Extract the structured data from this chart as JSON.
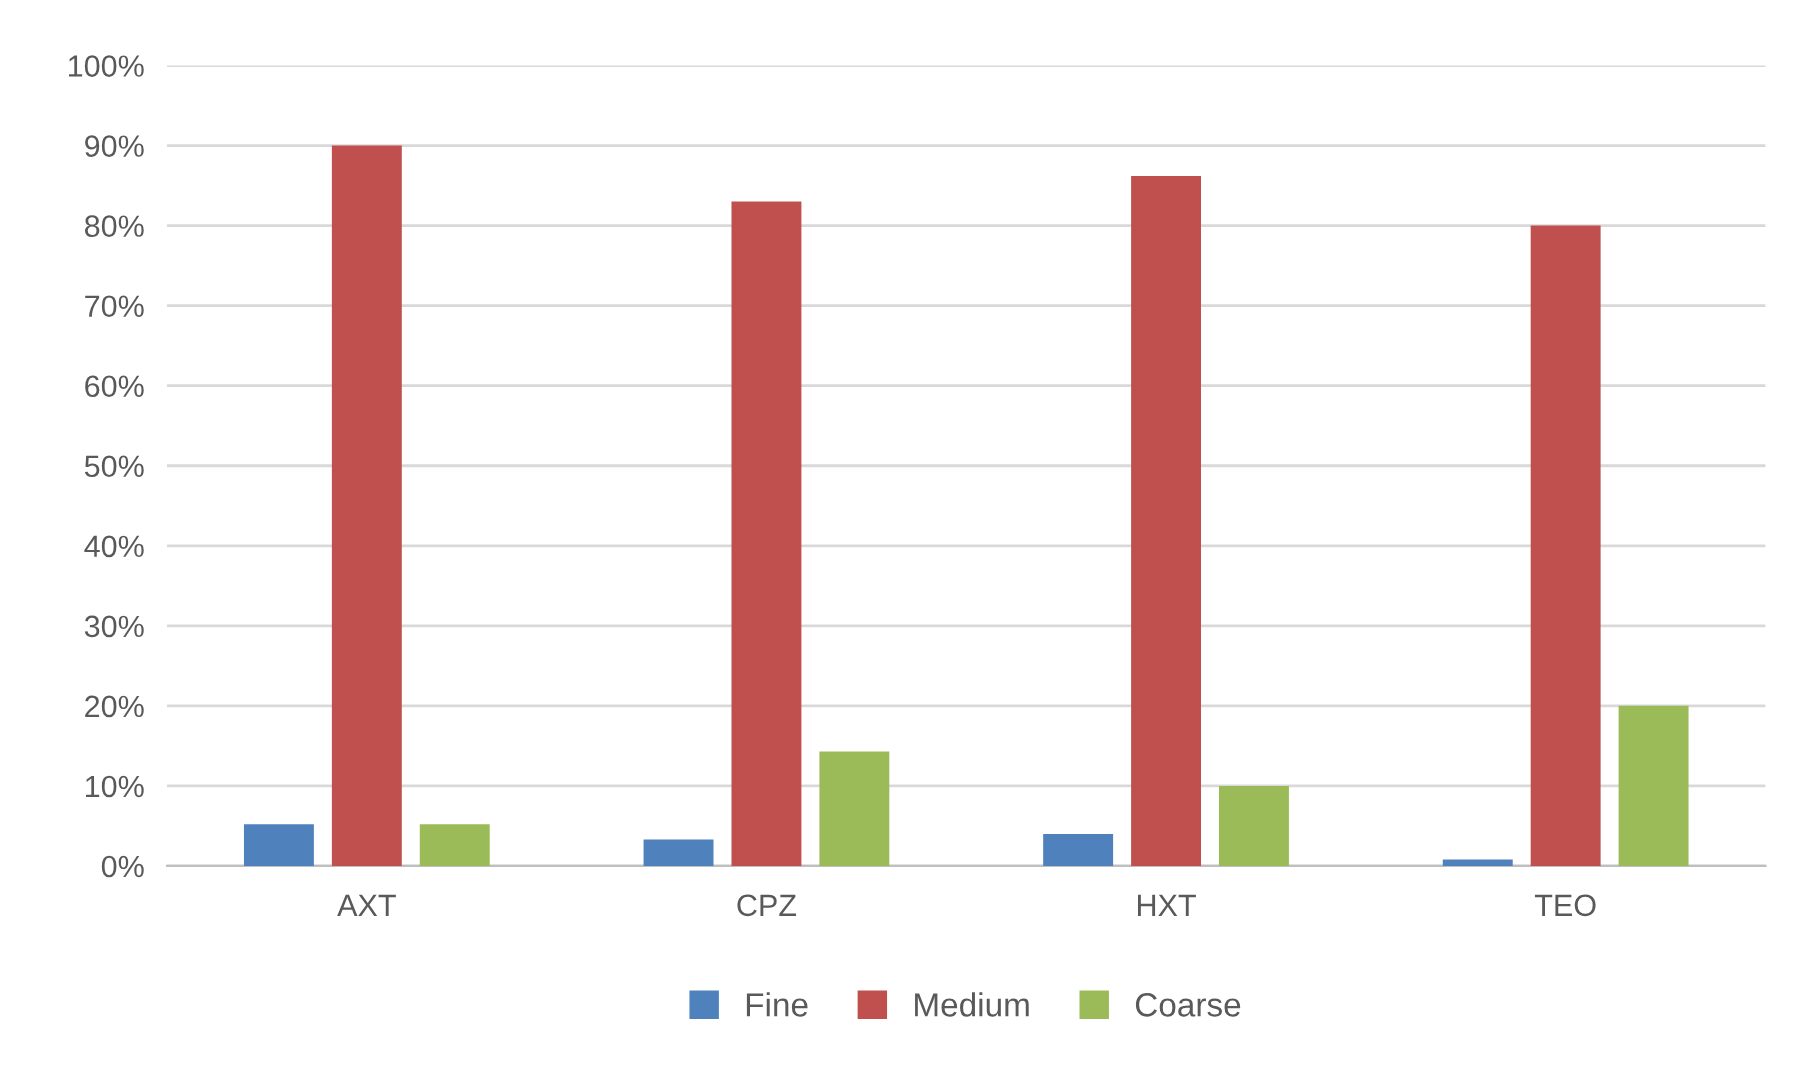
{
  "chart_data": {
    "type": "bar",
    "categories": [
      "AXT",
      "CPZ",
      "HXT",
      "TEO"
    ],
    "series": [
      {
        "name": "Fine",
        "color": "#4f81bd",
        "values": [
          5.2,
          3.3,
          4.0,
          0.8
        ]
      },
      {
        "name": "Medium",
        "color": "#c0504d",
        "values": [
          90,
          83,
          86.2,
          80
        ]
      },
      {
        "name": "Coarse",
        "color": "#9bbb59",
        "values": [
          5.2,
          14.3,
          10,
          20
        ]
      }
    ],
    "ylim": [
      0,
      100
    ],
    "yticks": [
      {
        "value": 0,
        "label": "0%"
      },
      {
        "value": 10,
        "label": "10%"
      },
      {
        "value": 20,
        "label": "20%"
      },
      {
        "value": 30,
        "label": "30%"
      },
      {
        "value": 40,
        "label": "40%"
      },
      {
        "value": 50,
        "label": "50%"
      },
      {
        "value": 60,
        "label": "60%"
      },
      {
        "value": 70,
        "label": "70%"
      },
      {
        "value": 80,
        "label": "80%"
      },
      {
        "value": 90,
        "label": "90%"
      },
      {
        "value": 100,
        "label": "100%"
      }
    ],
    "grid": "y",
    "legend": "bottom"
  }
}
